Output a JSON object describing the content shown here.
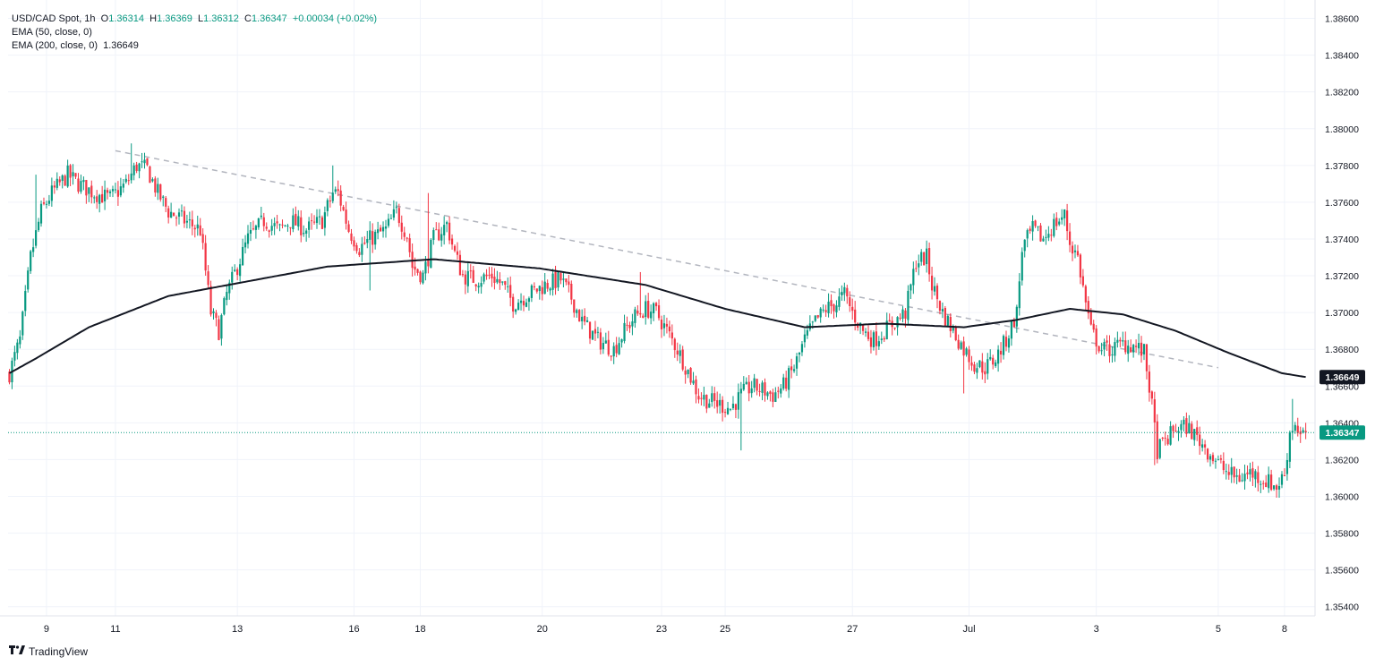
{
  "legend": {
    "symbol": "USD/CAD Spot, 1h",
    "o_label": "O",
    "o_value": "1.36314",
    "h_label": "H",
    "h_value": "1.36369",
    "l_label": "L",
    "l_value": "1.36312",
    "c_label": "C",
    "c_value": "1.36347",
    "change": "+0.00034 (+0.02%)",
    "ema50_label": "EMA (50, close, 0)",
    "ema200_label": "EMA (200, close, 0)",
    "ema200_value": "1.36649"
  },
  "brand": {
    "name": "TradingView"
  },
  "colors": {
    "up": "#089981",
    "down": "#f23645",
    "ema": "#131722",
    "trend": "#b2b5be",
    "grid": "#f0f3fa"
  },
  "chart_data": {
    "type": "candlestick",
    "symbol": "USD/CAD Spot",
    "interval": "1h",
    "ylim": [
      1.3535,
      1.387
    ],
    "yticks": [
      1.354,
      1.356,
      1.358,
      1.36,
      1.362,
      1.364,
      1.366,
      1.368,
      1.37,
      1.372,
      1.374,
      1.376,
      1.378,
      1.38,
      1.382,
      1.384,
      1.386
    ],
    "ytick_labels": [
      "1.35400",
      "1.35600",
      "1.35800",
      "1.36000",
      "1.36200",
      "1.36400",
      "1.36600",
      "1.36800",
      "1.37000",
      "1.37200",
      "1.37400",
      "1.37600",
      "1.37800",
      "1.38000",
      "1.38200",
      "1.38400",
      "1.38600"
    ],
    "xticks": [
      {
        "label": "9",
        "bar": 14
      },
      {
        "label": "11",
        "bar": 40
      },
      {
        "label": "13",
        "bar": 86
      },
      {
        "label": "16",
        "bar": 130
      },
      {
        "label": "18",
        "bar": 155
      },
      {
        "label": "20",
        "bar": 201
      },
      {
        "label": "23",
        "bar": 246
      },
      {
        "label": "25",
        "bar": 270
      },
      {
        "label": "27",
        "bar": 318
      },
      {
        "label": "Jul",
        "bar": 362
      },
      {
        "label": "3",
        "bar": 410
      },
      {
        "label": "5",
        "bar": 456
      },
      {
        "label": "8",
        "bar": 481
      }
    ],
    "last_price": 1.36347,
    "last_price_label": "1.36347",
    "ema200_last": 1.36649,
    "ema200_last_label": "1.36649",
    "path_waypoints": [
      [
        0,
        1.3667
      ],
      [
        4,
        1.3685
      ],
      [
        8,
        1.373
      ],
      [
        12,
        1.3755
      ],
      [
        16,
        1.3765
      ],
      [
        22,
        1.3775
      ],
      [
        26,
        1.377
      ],
      [
        32,
        1.3765
      ],
      [
        38,
        1.3762
      ],
      [
        44,
        1.377
      ],
      [
        48,
        1.378
      ],
      [
        52,
        1.3778
      ],
      [
        56,
        1.3765
      ],
      [
        60,
        1.3755
      ],
      [
        66,
        1.375
      ],
      [
        72,
        1.3745
      ],
      [
        76,
        1.37
      ],
      [
        79,
        1.369
      ],
      [
        82,
        1.371
      ],
      [
        86,
        1.3725
      ],
      [
        90,
        1.374
      ],
      [
        96,
        1.375
      ],
      [
        102,
        1.3745
      ],
      [
        106,
        1.375
      ],
      [
        112,
        1.3745
      ],
      [
        118,
        1.375
      ],
      [
        122,
        1.3765
      ],
      [
        124,
        1.3765
      ],
      [
        128,
        1.3745
      ],
      [
        132,
        1.3735
      ],
      [
        136,
        1.374
      ],
      [
        142,
        1.3745
      ],
      [
        146,
        1.3755
      ],
      [
        150,
        1.3742
      ],
      [
        152,
        1.3725
      ],
      [
        156,
        1.372
      ],
      [
        160,
        1.374
      ],
      [
        165,
        1.3748
      ],
      [
        168,
        1.3732
      ],
      [
        171,
        1.372
      ],
      [
        176,
        1.3718
      ],
      [
        182,
        1.372
      ],
      [
        186,
        1.3715
      ],
      [
        190,
        1.3705
      ],
      [
        196,
        1.371
      ],
      [
        202,
        1.3715
      ],
      [
        208,
        1.3718
      ],
      [
        212,
        1.3708
      ],
      [
        216,
        1.3695
      ],
      [
        222,
        1.3685
      ],
      [
        228,
        1.368
      ],
      [
        232,
        1.369
      ],
      [
        236,
        1.3698
      ],
      [
        240,
        1.3702
      ],
      [
        244,
        1.37
      ],
      [
        248,
        1.369
      ],
      [
        252,
        1.368
      ],
      [
        256,
        1.3668
      ],
      [
        260,
        1.3655
      ],
      [
        264,
        1.3652
      ],
      [
        268,
        1.365
      ],
      [
        272,
        1.3648
      ],
      [
        276,
        1.3655
      ],
      [
        280,
        1.366
      ],
      [
        284,
        1.3658
      ],
      [
        288,
        1.3655
      ],
      [
        292,
        1.366
      ],
      [
        296,
        1.367
      ],
      [
        300,
        1.3685
      ],
      [
        304,
        1.3695
      ],
      [
        308,
        1.3702
      ],
      [
        312,
        1.3705
      ],
      [
        315,
        1.371
      ],
      [
        318,
        1.37
      ],
      [
        322,
        1.369
      ],
      [
        326,
        1.3685
      ],
      [
        330,
        1.369
      ],
      [
        334,
        1.3695
      ],
      [
        338,
        1.37
      ],
      [
        342,
        1.3728
      ],
      [
        346,
        1.373
      ],
      [
        348,
        1.3715
      ],
      [
        352,
        1.37
      ],
      [
        356,
        1.369
      ],
      [
        360,
        1.368
      ],
      [
        364,
        1.3672
      ],
      [
        368,
        1.367
      ],
      [
        372,
        1.3675
      ],
      [
        376,
        1.3685
      ],
      [
        380,
        1.37
      ],
      [
        382,
        1.3735
      ],
      [
        386,
        1.3745
      ],
      [
        390,
        1.374
      ],
      [
        394,
        1.3748
      ],
      [
        398,
        1.3753
      ],
      [
        400,
        1.3738
      ],
      [
        403,
        1.373
      ],
      [
        406,
        1.3705
      ],
      [
        408,
        1.369
      ],
      [
        412,
        1.368
      ],
      [
        416,
        1.368
      ],
      [
        420,
        1.3683
      ],
      [
        424,
        1.3682
      ],
      [
        428,
        1.3678
      ],
      [
        430,
        1.366
      ],
      [
        433,
        1.3625
      ],
      [
        436,
        1.363
      ],
      [
        440,
        1.3637
      ],
      [
        444,
        1.3638
      ],
      [
        448,
        1.3632
      ],
      [
        452,
        1.3625
      ],
      [
        456,
        1.3618
      ],
      [
        460,
        1.3612
      ],
      [
        464,
        1.361
      ],
      [
        468,
        1.3613
      ],
      [
        472,
        1.361
      ],
      [
        476,
        1.3607
      ],
      [
        478,
        1.3605
      ],
      [
        481,
        1.3612
      ],
      [
        483,
        1.3635
      ],
      [
        485,
        1.364
      ],
      [
        487,
        1.3633
      ],
      [
        489,
        1.3635
      ]
    ],
    "spikes": [
      [
        10,
        1.3775,
        "h"
      ],
      [
        46,
        1.3792,
        "h"
      ],
      [
        80,
        1.3682,
        "l"
      ],
      [
        122,
        1.378,
        "h"
      ],
      [
        136,
        1.3712,
        "l"
      ],
      [
        158,
        1.3765,
        "h"
      ],
      [
        172,
        1.371,
        "l"
      ],
      [
        238,
        1.3722,
        "h"
      ],
      [
        276,
        1.3625,
        "l"
      ],
      [
        360,
        1.3656,
        "l"
      ],
      [
        398,
        1.3755,
        "h"
      ],
      [
        432,
        1.3617,
        "l"
      ],
      [
        484,
        1.3653,
        "h"
      ]
    ],
    "ema200": [
      [
        0,
        1.3667
      ],
      [
        10,
        1.3675
      ],
      [
        30,
        1.3692
      ],
      [
        60,
        1.3709
      ],
      [
        90,
        1.3717
      ],
      [
        120,
        1.3725
      ],
      [
        160,
        1.3729
      ],
      [
        200,
        1.3724
      ],
      [
        240,
        1.3715
      ],
      [
        270,
        1.3702
      ],
      [
        300,
        1.3692
      ],
      [
        330,
        1.3694
      ],
      [
        360,
        1.3692
      ],
      [
        380,
        1.3696
      ],
      [
        400,
        1.3702
      ],
      [
        420,
        1.3699
      ],
      [
        440,
        1.369
      ],
      [
        460,
        1.3678
      ],
      [
        480,
        1.3667
      ],
      [
        489,
        1.36649
      ]
    ],
    "trendline": [
      [
        40,
        1.3788
      ],
      [
        456,
        1.367
      ]
    ],
    "n_bars": 490
  }
}
